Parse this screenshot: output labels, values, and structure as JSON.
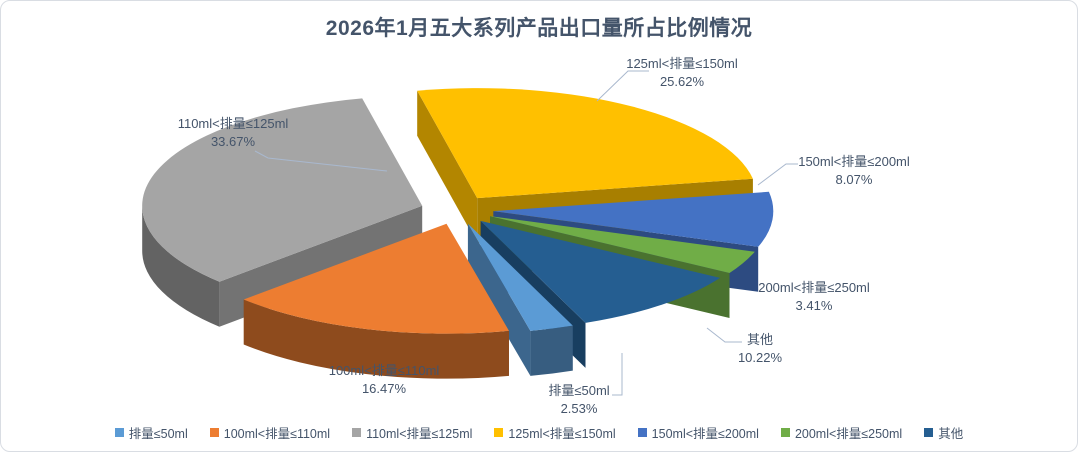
{
  "frame": {
    "background": "#ffffff",
    "border_color": "#d9dde3"
  },
  "chart_data": {
    "type": "pie",
    "style": "3d-exploded",
    "title": "2026年1月五大系列产品出口量所占比例情况",
    "title_color": "#44546A",
    "label_color": "#44546A",
    "legend_position": "bottom",
    "direction": "clockwise",
    "start_angle_deg": 158,
    "data_labels": "category-name-and-percent",
    "slices": [
      {
        "label": "排量≤50ml",
        "value": 2.53,
        "pct": "2.53%",
        "color": "#5B9BD5"
      },
      {
        "label": "100ml<排量≤110ml",
        "value": 16.47,
        "pct": "16.47%",
        "color": "#ED7D31"
      },
      {
        "label": "110ml<排量≤125ml",
        "value": 33.67,
        "pct": "33.67%",
        "color": "#A5A5A5"
      },
      {
        "label": "125ml<排量≤150ml",
        "value": 25.62,
        "pct": "25.62%",
        "color": "#FFC000"
      },
      {
        "label": "150ml<排量≤200ml",
        "value": 8.07,
        "pct": "8.07%",
        "color": "#4472C4"
      },
      {
        "label": "200ml<排量≤250ml",
        "value": 3.41,
        "pct": "3.41%",
        "color": "#70AD47"
      },
      {
        "label": "其他",
        "value": 10.22,
        "pct": "10.22%",
        "color": "#255E91"
      }
    ]
  }
}
